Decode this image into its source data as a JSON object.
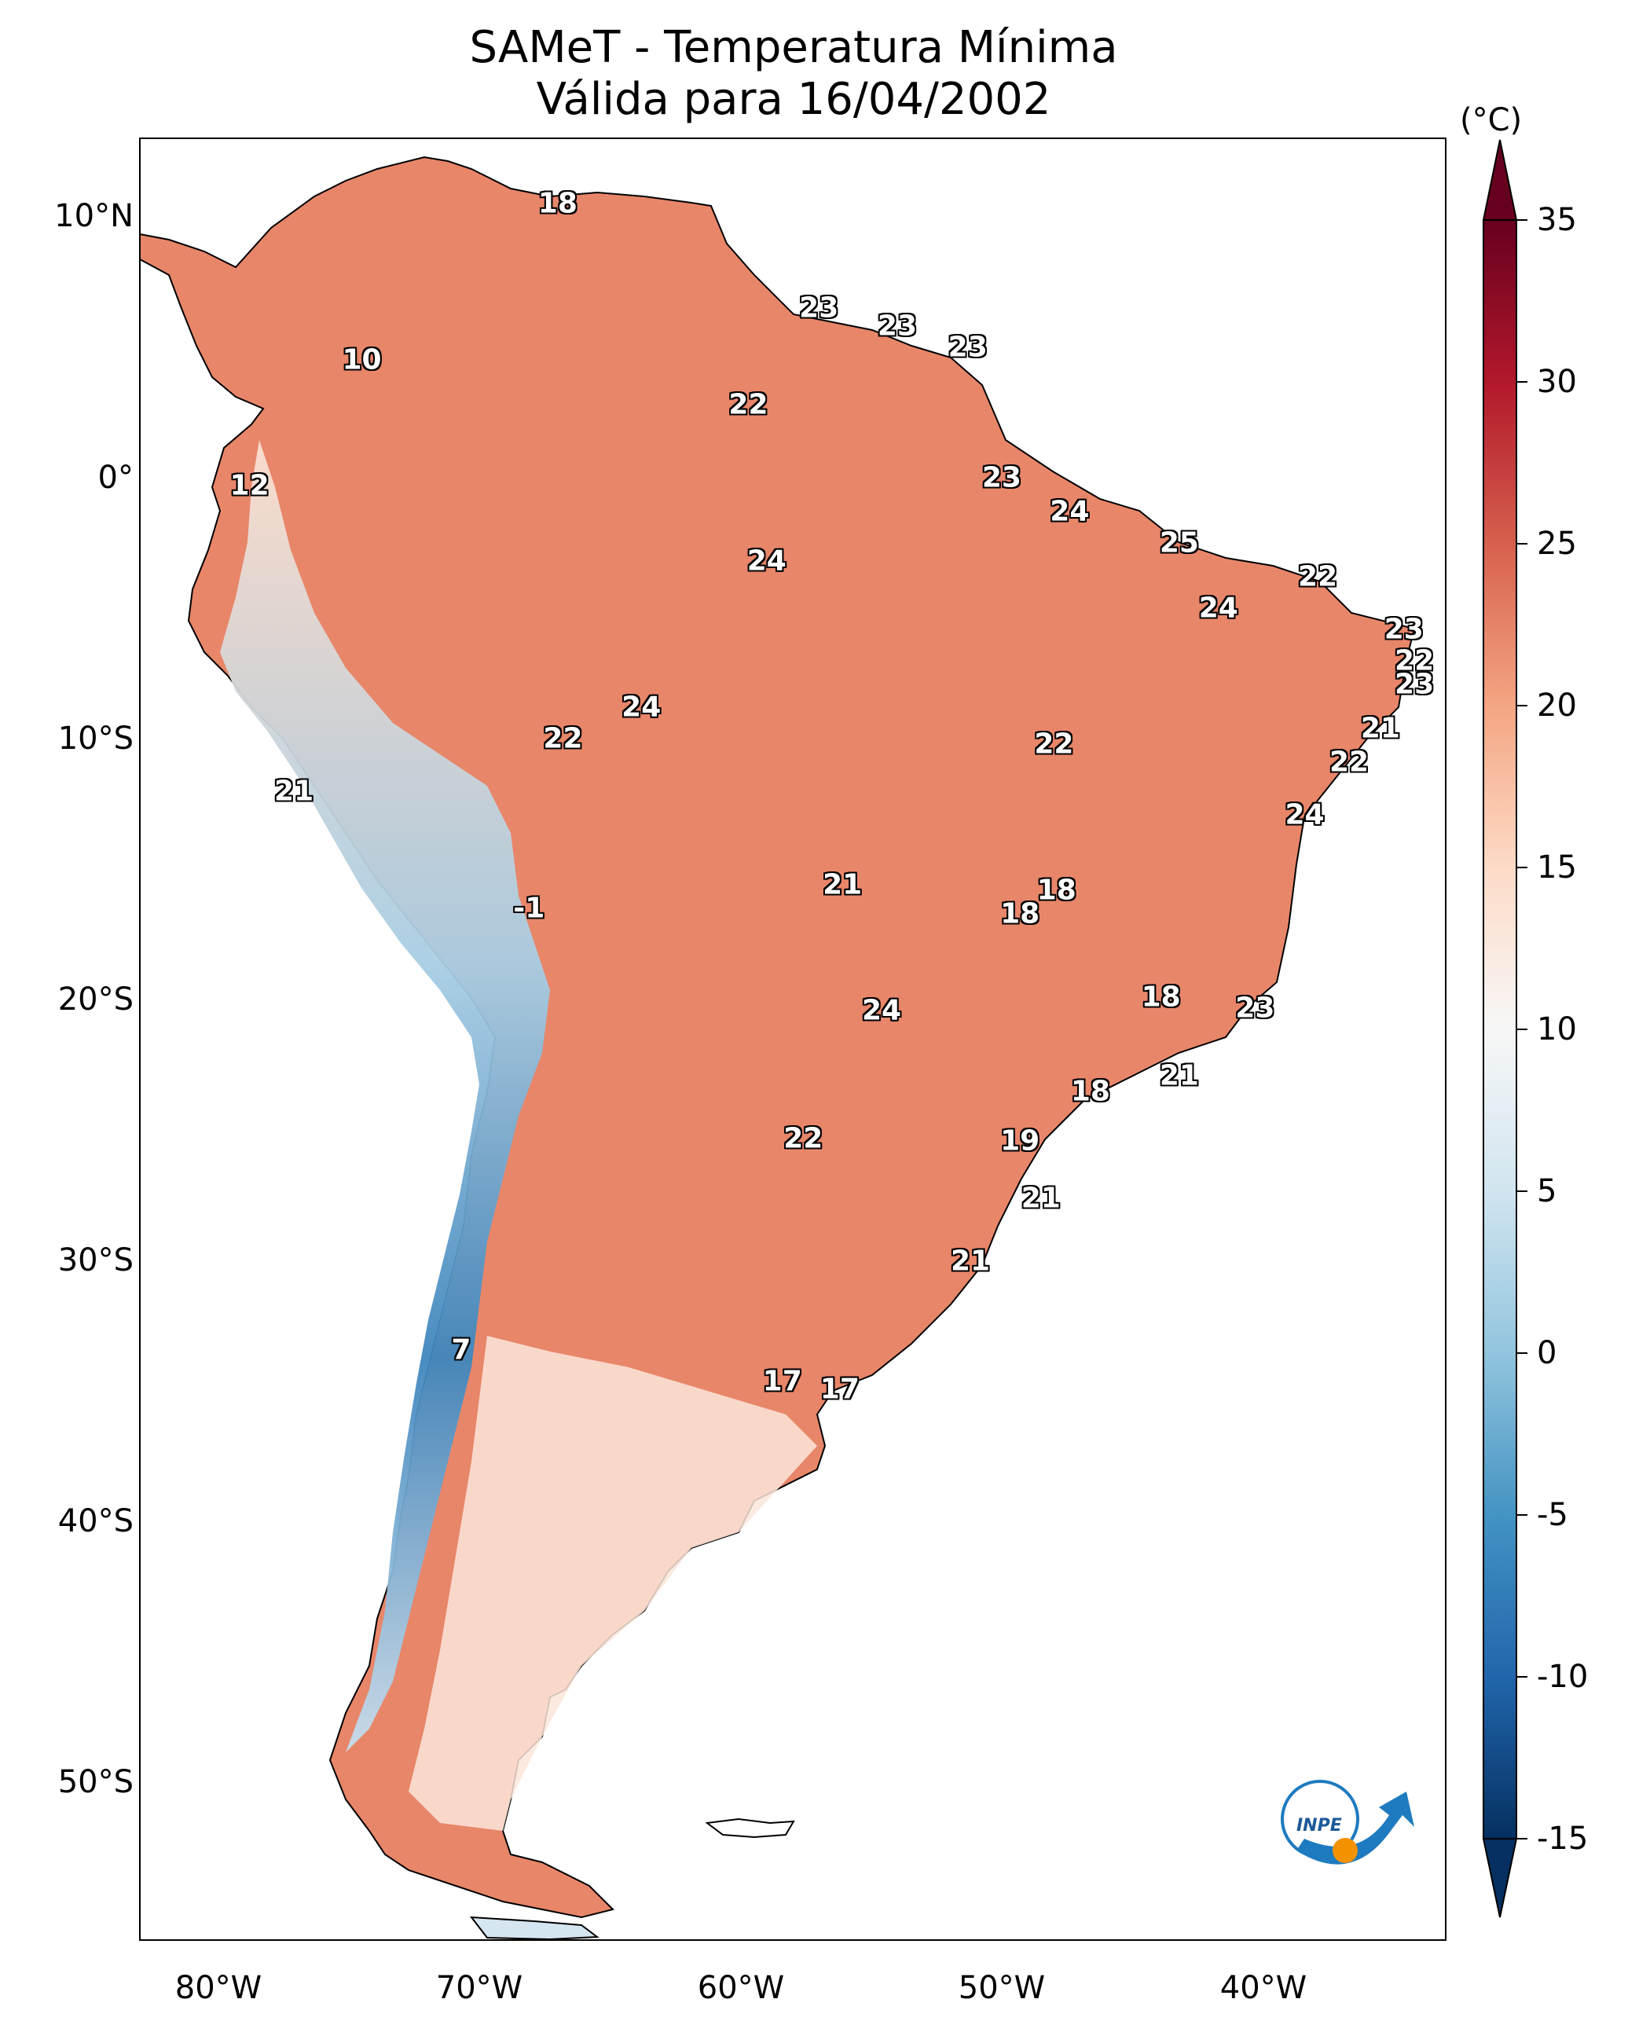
{
  "title": {
    "line1": "SAMeT - Temperatura Mínima",
    "line2": "Válida para 16/04/2002"
  },
  "map": {
    "lon_range": [
      -83,
      -33
    ],
    "lat_range": [
      -56,
      13
    ],
    "lon_ticks": [
      "80°W",
      "70°W",
      "60°W",
      "50°W",
      "40°W"
    ],
    "lat_ticks": [
      "10°N",
      "0°",
      "10°S",
      "20°S",
      "30°S",
      "40°S",
      "50°S"
    ]
  },
  "colorbar": {
    "unit": "(°C)",
    "min": -15,
    "max": 35,
    "ticks": [
      "35",
      "30",
      "25",
      "20",
      "15",
      "10",
      "5",
      "0",
      "-5",
      "-10",
      "-15"
    ],
    "colors": [
      "#053061",
      "#2166ac",
      "#4393c3",
      "#92c5de",
      "#d1e5f0",
      "#f7f7f7",
      "#fddbc7",
      "#f4a582",
      "#d6604d",
      "#b2182b",
      "#67001f"
    ]
  },
  "labels": [
    {
      "value": "18",
      "lon": -67.0,
      "lat": 10.5
    },
    {
      "value": "10",
      "lon": -74.5,
      "lat": 4.5
    },
    {
      "value": "12",
      "lon": -78.8,
      "lat": -0.3
    },
    {
      "value": "23",
      "lon": -57.0,
      "lat": 6.5
    },
    {
      "value": "23",
      "lon": -54.0,
      "lat": 5.8
    },
    {
      "value": "23",
      "lon": -51.3,
      "lat": 5.0
    },
    {
      "value": "22",
      "lon": -59.7,
      "lat": 2.8
    },
    {
      "value": "23",
      "lon": -50.0,
      "lat": 0.0
    },
    {
      "value": "24",
      "lon": -47.4,
      "lat": -1.3
    },
    {
      "value": "25",
      "lon": -43.2,
      "lat": -2.5
    },
    {
      "value": "22",
      "lon": -37.9,
      "lat": -3.8
    },
    {
      "value": "24",
      "lon": -59.0,
      "lat": -3.2
    },
    {
      "value": "24",
      "lon": -41.7,
      "lat": -5.0
    },
    {
      "value": "23",
      "lon": -34.6,
      "lat": -5.8
    },
    {
      "value": "22",
      "lon": -34.2,
      "lat": -7.0
    },
    {
      "value": "23",
      "lon": -34.2,
      "lat": -7.9
    },
    {
      "value": "21",
      "lon": -35.5,
      "lat": -9.6
    },
    {
      "value": "22",
      "lon": -36.7,
      "lat": -10.9
    },
    {
      "value": "24",
      "lon": -63.8,
      "lat": -8.8
    },
    {
      "value": "22",
      "lon": -66.8,
      "lat": -10.0
    },
    {
      "value": "22",
      "lon": -48.0,
      "lat": -10.2
    },
    {
      "value": "24",
      "lon": -38.4,
      "lat": -12.9
    },
    {
      "value": "21",
      "lon": -77.1,
      "lat": -12.0
    },
    {
      "value": "21",
      "lon": -56.1,
      "lat": -15.6
    },
    {
      "value": "18",
      "lon": -47.9,
      "lat": -15.8
    },
    {
      "value": "18",
      "lon": -49.3,
      "lat": -16.7
    },
    {
      "value": "-1",
      "lon": -68.1,
      "lat": -16.5
    },
    {
      "value": "18",
      "lon": -43.9,
      "lat": -19.9
    },
    {
      "value": "24",
      "lon": -54.6,
      "lat": -20.4
    },
    {
      "value": "23",
      "lon": -40.3,
      "lat": -20.3
    },
    {
      "value": "21",
      "lon": -43.2,
      "lat": -22.9
    },
    {
      "value": "18",
      "lon": -46.6,
      "lat": -23.5
    },
    {
      "value": "22",
      "lon": -57.6,
      "lat": -25.3
    },
    {
      "value": "19",
      "lon": -49.3,
      "lat": -25.4
    },
    {
      "value": "21",
      "lon": -48.5,
      "lat": -27.6
    },
    {
      "value": "21",
      "lon": -51.2,
      "lat": -30.0
    },
    {
      "value": "7",
      "lon": -70.7,
      "lat": -33.4
    },
    {
      "value": "17",
      "lon": -58.4,
      "lat": -34.6
    },
    {
      "value": "17",
      "lon": -56.2,
      "lat": -34.9
    }
  ]
}
